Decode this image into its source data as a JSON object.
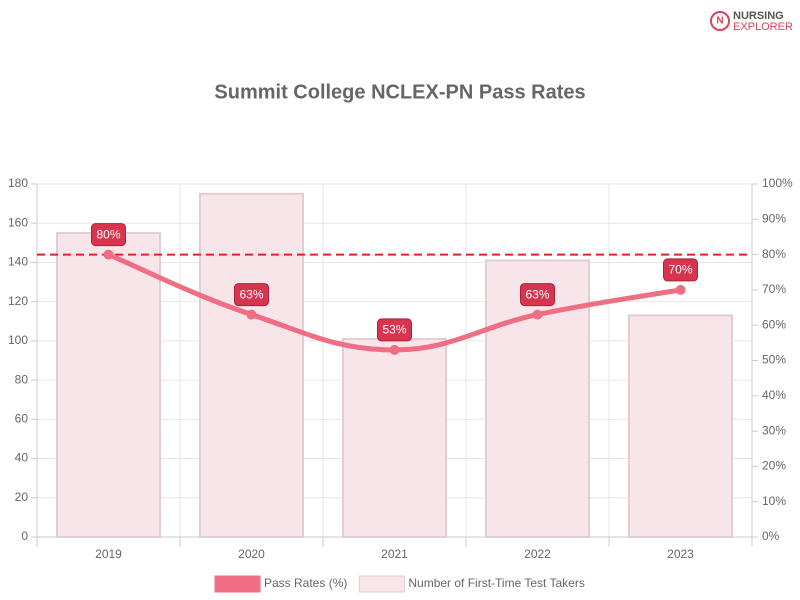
{
  "logo": [
    "NURSING",
    "EXPLORER"
  ],
  "chart_data": {
    "type": "bar-line",
    "title": "Summit College NCLEX-PN Pass Rates",
    "categories": [
      "2019",
      "2020",
      "2021",
      "2022",
      "2023"
    ],
    "series": [
      {
        "name": "Pass Rates (%)",
        "type": "line",
        "axis": "y2",
        "color": "#f06e84",
        "values": [
          80,
          63,
          53,
          63,
          70
        ],
        "value_labels": [
          "80%",
          "63%",
          "53%",
          "63%",
          "70%"
        ]
      },
      {
        "name": "Number of First-Time Test Takers",
        "type": "bar",
        "color": "#f8e5ea",
        "values": [
          155,
          175,
          101,
          141,
          113
        ]
      }
    ],
    "reference_line": {
      "value": 80,
      "axis": "y2",
      "color": "#e0202a"
    },
    "ylim": [
      0,
      180
    ],
    "yticks": [
      0,
      20,
      40,
      60,
      80,
      100,
      120,
      140,
      160,
      180
    ],
    "y2lim": [
      0,
      100
    ],
    "y2ticks": [
      {
        "value": 0,
        "label": "0%"
      },
      {
        "value": 10,
        "label": "10%"
      },
      {
        "value": 20,
        "label": "20%"
      },
      {
        "value": 30,
        "label": "30%"
      },
      {
        "value": 40,
        "label": "40%"
      },
      {
        "value": 50,
        "label": "50%"
      },
      {
        "value": 60,
        "label": "60%"
      },
      {
        "value": 70,
        "label": "70%"
      },
      {
        "value": 80,
        "label": "80%"
      },
      {
        "value": 90,
        "label": "90%"
      },
      {
        "value": 100,
        "label": "100%"
      }
    ],
    "grid": true,
    "legend": "bottom"
  }
}
